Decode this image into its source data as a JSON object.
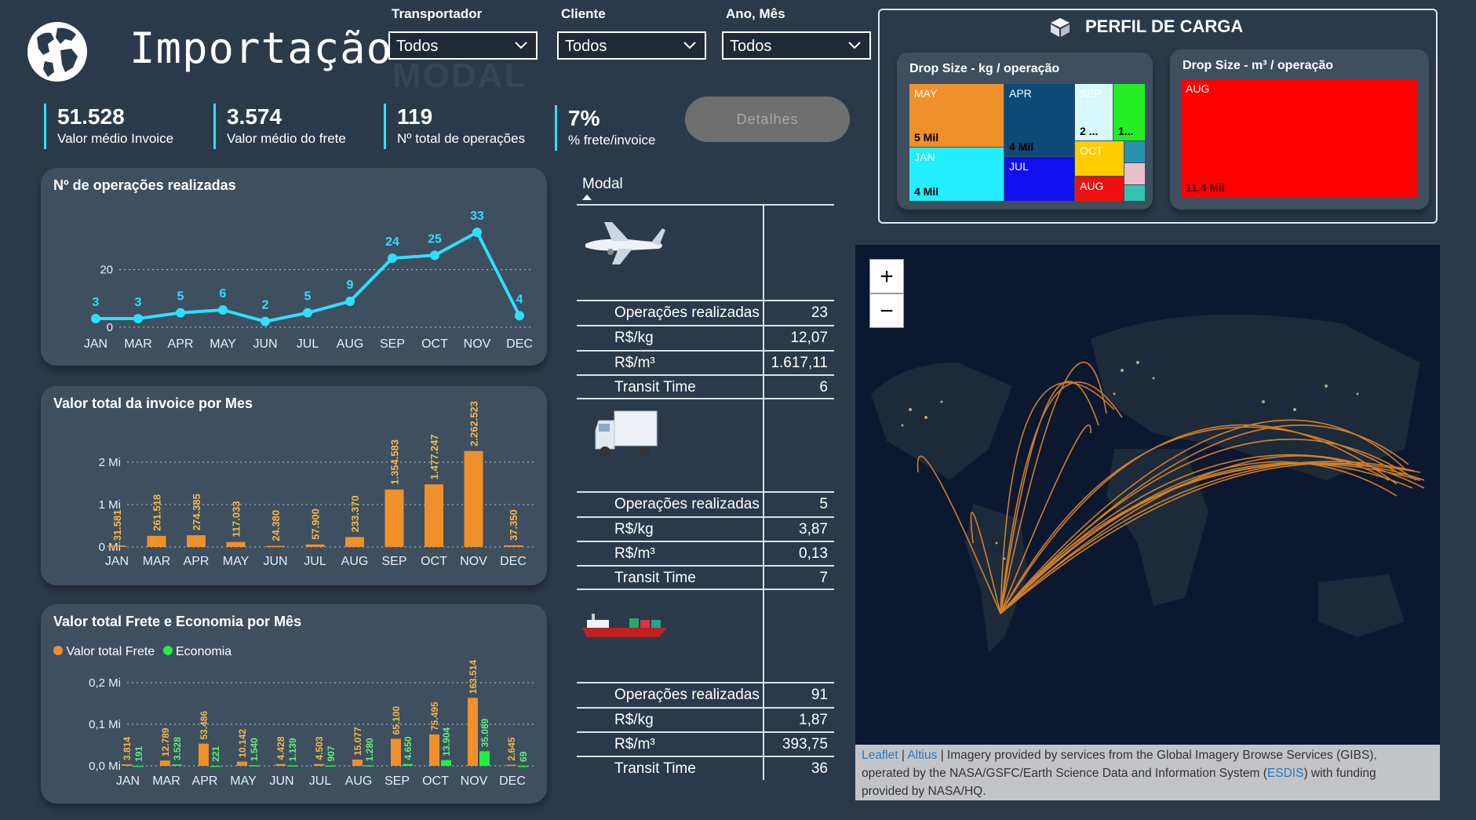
{
  "header": {
    "title": "Importação",
    "watermark": "MODAL",
    "filters": [
      {
        "label": "Transportador",
        "value": "Todos"
      },
      {
        "label": "Cliente",
        "value": "Todos"
      },
      {
        "label": "Ano, Mês",
        "value": "Todos"
      }
    ]
  },
  "kpis": [
    {
      "value": "51.528",
      "label": "Valor médio Invoice"
    },
    {
      "value": "3.574",
      "label": "Valor médio do frete"
    },
    {
      "value": "119",
      "label": "Nº total de operações"
    },
    {
      "value": "7%",
      "label": "% frete/invoice"
    }
  ],
  "detalhes_button": "Detalhes",
  "colors": {
    "background": "#2b3a4a",
    "panel": "#3e4f60",
    "line": "#2ee0ff",
    "bar": "#f0902a",
    "economia": "#22ee44",
    "kpi_bar": "#2ee0ff"
  },
  "chart_data": [
    {
      "type": "line",
      "title": "Nº de operações realizadas",
      "categories": [
        "JAN",
        "MAR",
        "APR",
        "MAY",
        "JUN",
        "JUL",
        "AUG",
        "SEP",
        "OCT",
        "NOV",
        "DEC"
      ],
      "values": [
        3,
        3,
        5,
        6,
        2,
        5,
        9,
        24,
        25,
        33,
        4
      ],
      "value_labels": [
        "3",
        "3",
        "5",
        "6",
        "2",
        "5",
        "9",
        "24",
        "25",
        "33",
        "4"
      ],
      "yticks": [
        "0",
        "20"
      ],
      "ylim": [
        0,
        36
      ],
      "grid": true
    },
    {
      "type": "bar",
      "title": "Valor total da invoice por Mes",
      "categories": [
        "JAN",
        "MAR",
        "APR",
        "MAY",
        "JUN",
        "JUL",
        "AUG",
        "SEP",
        "OCT",
        "NOV",
        "DEC"
      ],
      "values": [
        31581,
        261518,
        274385,
        117033,
        24380,
        57900,
        233370,
        1354583,
        1477247,
        2262523,
        37350
      ],
      "value_labels": [
        "31.581",
        "261.518",
        "274.385",
        "117.033",
        "24.380",
        "57.900",
        "233.370",
        "1.354.583",
        "1.477.247",
        "2.262.523",
        "37.350"
      ],
      "yticks": [
        "0 Mi",
        "1 Mi",
        "2 Mi"
      ],
      "ylim": [
        0,
        2500000
      ],
      "grid": true
    },
    {
      "type": "bar",
      "title": "Valor total Frete e Economia por Mês",
      "legend": [
        "Valor total Frete",
        "Economia"
      ],
      "categories": [
        "JAN",
        "MAR",
        "APR",
        "MAY",
        "JUN",
        "JUL",
        "AUG",
        "SEP",
        "OCT",
        "NOV",
        "DEC"
      ],
      "series": [
        {
          "name": "Valor total Frete",
          "values": [
            3814,
            12789,
            53486,
            10142,
            4428,
            4503,
            15077,
            65100,
            75495,
            163514,
            2645
          ],
          "labels": [
            "3.814",
            "12.789",
            "53.486",
            "10.142",
            "4.428",
            "4.503",
            "15.077",
            "65.100",
            "75.495",
            "163.514",
            "2.645"
          ]
        },
        {
          "name": "Economia",
          "values": [
            191,
            3528,
            221,
            1540,
            1139,
            907,
            1280,
            4650,
            13904,
            35089,
            69
          ],
          "labels": [
            "191",
            "3.528",
            "221",
            "1.540",
            "1.139",
            "907",
            "1.280",
            "4.650",
            "13.904",
            "35.089",
            "69"
          ]
        }
      ],
      "yticks": [
        "0,0 Mi",
        "0,1 Mi",
        "0,2 Mi"
      ],
      "ylim": [
        0,
        200000
      ],
      "grid": true
    }
  ],
  "modal": {
    "header": "Modal",
    "groups": [
      {
        "icon": "airplane-icon",
        "rows": [
          {
            "k": "Operações realizadas",
            "v": "23"
          },
          {
            "k": "R$/kg",
            "v": "12,07"
          },
          {
            "k": "R$/m³",
            "v": "1.617,11"
          },
          {
            "k": "Transit Time",
            "v": "6"
          }
        ]
      },
      {
        "icon": "truck-icon",
        "rows": [
          {
            "k": "Operações realizadas",
            "v": "5"
          },
          {
            "k": "R$/kg",
            "v": "3,87"
          },
          {
            "k": "R$/m³",
            "v": "0,13"
          },
          {
            "k": "Transit Time",
            "v": "7"
          }
        ]
      },
      {
        "icon": "ship-icon",
        "rows": [
          {
            "k": "Operações realizadas",
            "v": "91"
          },
          {
            "k": "R$/kg",
            "v": "1,87"
          },
          {
            "k": "R$/m³",
            "v": "393,75"
          },
          {
            "k": "Transit Time",
            "v": "36"
          }
        ]
      }
    ]
  },
  "perfil": {
    "title": "PERFIL DE CARGA",
    "kg": {
      "title": "Drop Size - kg / operação",
      "tiles": [
        {
          "label": "MAY",
          "value": "5 Mil",
          "color": "#f0902a"
        },
        {
          "label": "APR",
          "value": "4 Mil",
          "color": "#0d4a78"
        },
        {
          "label": "SEP",
          "value": "2 ...",
          "color": "#d8f8ff"
        },
        {
          "label": "",
          "value": "1...",
          "color": "#22ee22"
        },
        {
          "label": "JAN",
          "value": "4 Mil",
          "color": "#22eeff"
        },
        {
          "label": "JUL",
          "value": "",
          "color": "#1010ee"
        },
        {
          "label": "OCT",
          "value": "",
          "color": "#ffcc00"
        },
        {
          "label": "AUG",
          "value": "",
          "color": "#ee1010"
        }
      ]
    },
    "m3": {
      "title": "Drop Size - m³ / operação",
      "tiles": [
        {
          "label": "AUG",
          "value": "11,4 Mil",
          "color": "#ff0000"
        }
      ]
    }
  },
  "map": {
    "zoom_in": "+",
    "zoom_out": "−",
    "attribution_links": [
      "Leaflet",
      "Altius",
      "ESDIS"
    ],
    "attribution_text_1": "| Imagery provided by services from the Global Imagery Browse Services (GIBS),",
    "attribution_text_2": "operated by the NASA/GSFC/Earth Science Data and Information System (",
    "attribution_text_3": ") with funding",
    "attribution_text_4": "provided by NASA/HQ."
  }
}
